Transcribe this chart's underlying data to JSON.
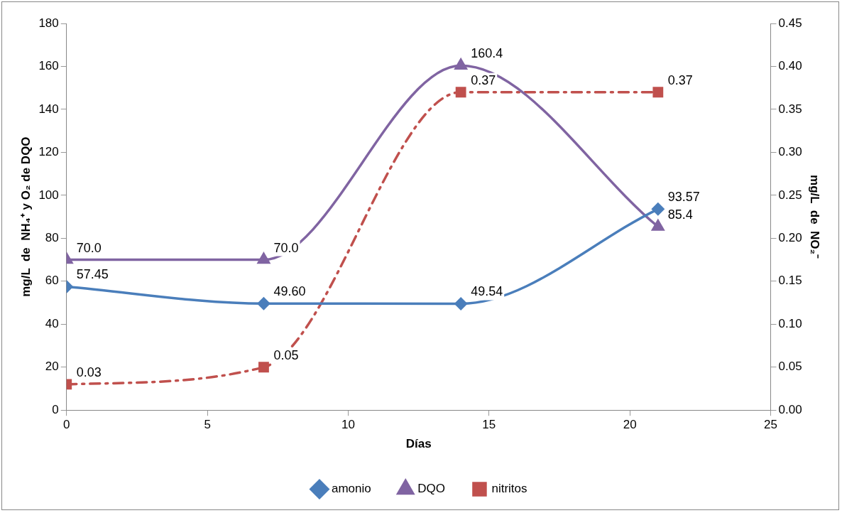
{
  "chart_data": {
    "type": "line",
    "xlabel": "Días",
    "ylabel": "mg/L  de  NH₄⁺ y O₂ de DQO",
    "y2label": "mg/L  de  NO₂⁻",
    "x": [
      0,
      7,
      14,
      21
    ],
    "series": [
      {
        "name": "amonio",
        "color": "#4a7ebb",
        "marker": "diamond",
        "line_style": "solid",
        "values": [
          57.45,
          49.6,
          49.54,
          93.57
        ],
        "value_labels": [
          "57.45",
          "49.60",
          "49.54",
          "93.57"
        ]
      },
      {
        "name": "DQO",
        "color": "#8064a2",
        "marker": "triangle",
        "line_style": "solid",
        "values": [
          70.0,
          70.0,
          160.4,
          85.4
        ],
        "value_labels": [
          "70.0",
          "70.0",
          "160.4",
          "85.4"
        ]
      },
      {
        "name": "nitritos",
        "color": "#c0504d",
        "marker": "square",
        "line_style": "dashed",
        "axis": "y2",
        "values": [
          0.03,
          0.05,
          0.37,
          0.37
        ],
        "value_labels": [
          "0.03",
          "0.05",
          "0.37",
          "0.37"
        ]
      }
    ],
    "xlim": [
      0,
      25
    ],
    "xticks": [
      0,
      5,
      10,
      15,
      20,
      25
    ],
    "ylim": [
      0,
      180
    ],
    "yticks": [
      0,
      20,
      40,
      60,
      80,
      100,
      120,
      140,
      160,
      180
    ],
    "y2lim": [
      0,
      0.45
    ],
    "y2ticks": [
      {
        "value": 0,
        "label": "0.00"
      },
      {
        "value": 0.05,
        "label": "0.05"
      },
      {
        "value": 0.1,
        "label": "0.10"
      },
      {
        "value": 0.15,
        "label": "0.15"
      },
      {
        "value": 0.2,
        "label": "0.20"
      },
      {
        "value": 0.25,
        "label": "0.25"
      },
      {
        "value": 0.3,
        "label": "0.30"
      },
      {
        "value": 0.35,
        "label": "0.35"
      },
      {
        "value": 0.4,
        "label": "0.40"
      },
      {
        "value": 0.45,
        "label": "0.45"
      }
    ],
    "grid": false,
    "legend": "bottom"
  }
}
